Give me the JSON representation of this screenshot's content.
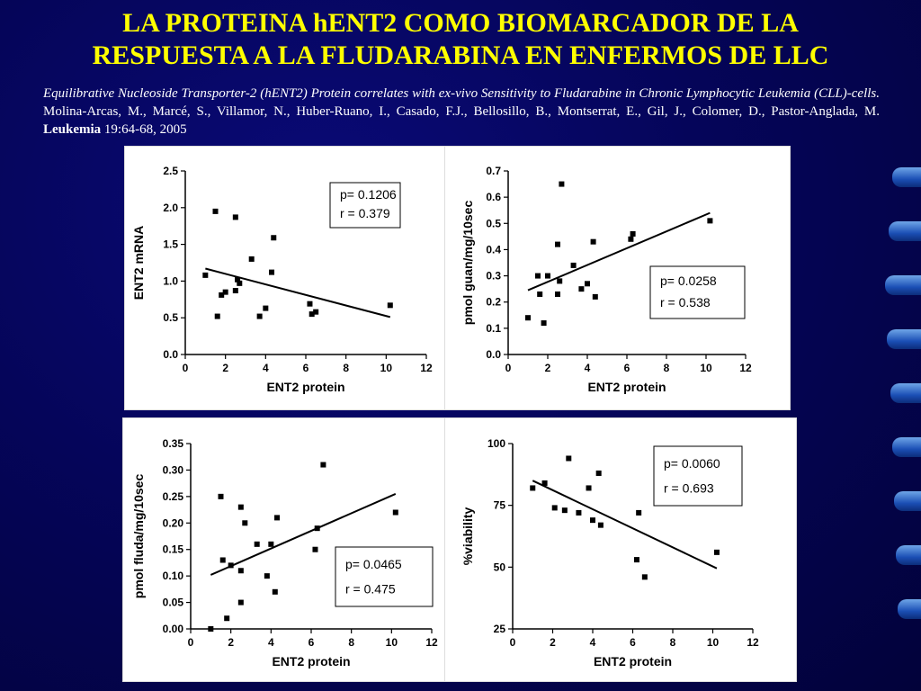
{
  "title": {
    "line1": "LA PROTEINA hENT2 COMO BIOMARCADOR DE LA",
    "line2": "RESPUESTA A LA FLUDARABINA EN ENFERMOS DE LLC"
  },
  "citation": {
    "italic": "Equilibrative Nucleoside Transporter-2 (hENT2) Protein correlates with ex-vivo Sensitivity to Fludarabine in Chronic Lymphocytic Leukemia (CLL)-cells.",
    "authors": " Molina-Arcas, M., Marcé, S., Villamor, N., Huber-Ruano, I., Casado, F.J., Bellosillo, B., Montserrat, E., Gil, J., Colomer, D., Pastor-Anglada, M. ",
    "journal": "Leukemia",
    "ref": " 19:64-68, 2005"
  },
  "colors": {
    "background": "#05055a",
    "title": "#ffff00",
    "text": "#ffffff",
    "panel": "#ffffff"
  },
  "chart_data": [
    {
      "type": "scatter",
      "name": "mrna",
      "xlabel": "ENT2 protein",
      "ylabel": "ENT2 mRNA",
      "xlim": [
        0,
        12
      ],
      "ylim": [
        0,
        2.5
      ],
      "xticks": [
        0,
        2,
        4,
        6,
        8,
        10,
        12
      ],
      "xtick_labels": [
        "0",
        "2",
        "4",
        "6",
        "8",
        "10",
        "12"
      ],
      "yticks": [
        0,
        0.5,
        1,
        1.5,
        2,
        2.5
      ],
      "ytick_labels": [
        "0.0",
        "0.5",
        "1.0",
        "1.5",
        "2.0",
        "2.5"
      ],
      "points": [
        [
          1.0,
          1.08
        ],
        [
          1.5,
          1.95
        ],
        [
          1.6,
          0.52
        ],
        [
          1.8,
          0.81
        ],
        [
          2.0,
          0.85
        ],
        [
          2.5,
          1.87
        ],
        [
          2.5,
          0.87
        ],
        [
          2.6,
          1.02
        ],
        [
          2.7,
          0.97
        ],
        [
          3.3,
          1.3
        ],
        [
          3.7,
          0.52
        ],
        [
          4.0,
          0.63
        ],
        [
          4.3,
          1.12
        ],
        [
          4.4,
          1.59
        ],
        [
          6.2,
          0.69
        ],
        [
          6.3,
          0.55
        ],
        [
          6.5,
          0.58
        ],
        [
          10.2,
          0.67
        ]
      ],
      "fit": [
        [
          1.0,
          1.17
        ],
        [
          10.2,
          0.51
        ]
      ],
      "stats": {
        "p": "p= 0.1206",
        "r": "r = 0.379"
      }
    },
    {
      "type": "scatter",
      "name": "guan",
      "xlabel": "ENT2 protein",
      "ylabel": "pmol guan/mg/10sec",
      "xlim": [
        0,
        12
      ],
      "ylim": [
        0,
        0.7
      ],
      "xticks": [
        0,
        2,
        4,
        6,
        8,
        10,
        12
      ],
      "xtick_labels": [
        "0",
        "2",
        "4",
        "6",
        "8",
        "10",
        "12"
      ],
      "yticks": [
        0,
        0.1,
        0.2,
        0.3,
        0.4,
        0.5,
        0.6,
        0.7
      ],
      "ytick_labels": [
        "0.0",
        "0.1",
        "0.2",
        "0.3",
        "0.4",
        "0.5",
        "0.6",
        "0.7"
      ],
      "points": [
        [
          1.0,
          0.14
        ],
        [
          1.5,
          0.3
        ],
        [
          1.6,
          0.23
        ],
        [
          1.8,
          0.12
        ],
        [
          2.0,
          0.3
        ],
        [
          2.5,
          0.23
        ],
        [
          2.5,
          0.42
        ],
        [
          2.6,
          0.28
        ],
        [
          2.7,
          0.65
        ],
        [
          3.3,
          0.34
        ],
        [
          3.7,
          0.25
        ],
        [
          4.0,
          0.27
        ],
        [
          4.3,
          0.43
        ],
        [
          4.4,
          0.22
        ],
        [
          6.2,
          0.44
        ],
        [
          6.3,
          0.46
        ],
        [
          10.2,
          0.51
        ]
      ],
      "fit": [
        [
          1.0,
          0.245
        ],
        [
          10.2,
          0.54
        ]
      ],
      "stats": {
        "p": "p= 0.0258",
        "r": "r = 0.538"
      }
    },
    {
      "type": "scatter",
      "name": "fluda",
      "xlabel": "ENT2 protein",
      "ylabel": "pmol fluda/mg/10sec",
      "xlim": [
        0,
        12
      ],
      "ylim": [
        0,
        0.35
      ],
      "xticks": [
        0,
        2,
        4,
        6,
        8,
        10,
        12
      ],
      "xtick_labels": [
        "0",
        "2",
        "4",
        "6",
        "8",
        "10",
        "12"
      ],
      "yticks": [
        0,
        0.05,
        0.1,
        0.15,
        0.2,
        0.25,
        0.3,
        0.35
      ],
      "ytick_labels": [
        "0.00",
        "0.05",
        "0.10",
        "0.15",
        "0.20",
        "0.25",
        "0.30",
        "0.35"
      ],
      "points": [
        [
          1.0,
          0.0
        ],
        [
          1.5,
          0.25
        ],
        [
          1.6,
          0.13
        ],
        [
          1.8,
          0.02
        ],
        [
          2.0,
          0.12
        ],
        [
          2.5,
          0.23
        ],
        [
          2.5,
          0.11
        ],
        [
          2.5,
          0.05
        ],
        [
          2.7,
          0.2
        ],
        [
          3.3,
          0.16
        ],
        [
          3.8,
          0.1
        ],
        [
          4.0,
          0.16
        ],
        [
          4.2,
          0.07
        ],
        [
          4.3,
          0.21
        ],
        [
          6.2,
          0.15
        ],
        [
          6.3,
          0.19
        ],
        [
          6.6,
          0.31
        ],
        [
          10.2,
          0.22
        ]
      ],
      "fit": [
        [
          1.0,
          0.102
        ],
        [
          10.2,
          0.255
        ]
      ],
      "stats": {
        "p": "p= 0.0465",
        "r": "r = 0.475"
      }
    },
    {
      "type": "scatter",
      "name": "viability",
      "xlabel": "ENT2 protein",
      "ylabel": "%viability",
      "xlim": [
        0,
        12
      ],
      "ylim": [
        25,
        100
      ],
      "xticks": [
        0,
        2,
        4,
        6,
        8,
        10,
        12
      ],
      "xtick_labels": [
        "0",
        "2",
        "4",
        "6",
        "8",
        "10",
        "12"
      ],
      "yticks": [
        25,
        50,
        75,
        100
      ],
      "ytick_labels": [
        "25",
        "50",
        "75",
        "100"
      ],
      "points": [
        [
          1.0,
          82
        ],
        [
          1.6,
          84
        ],
        [
          2.1,
          74
        ],
        [
          2.6,
          73
        ],
        [
          2.8,
          94
        ],
        [
          3.3,
          72
        ],
        [
          3.8,
          82
        ],
        [
          4.0,
          69
        ],
        [
          4.3,
          88
        ],
        [
          4.4,
          67
        ],
        [
          6.2,
          53
        ],
        [
          6.3,
          72
        ],
        [
          6.6,
          46
        ],
        [
          10.2,
          56
        ]
      ],
      "fit": [
        [
          1.0,
          85
        ],
        [
          10.2,
          49.5
        ]
      ],
      "stats": {
        "p": "p= 0.0060",
        "r": "r = 0.693"
      }
    }
  ]
}
